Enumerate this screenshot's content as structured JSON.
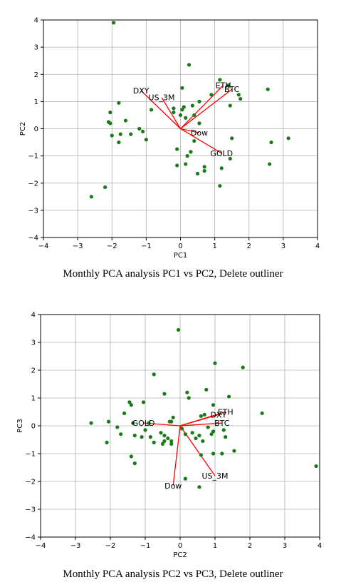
{
  "chart_data": [
    {
      "type": "scatter",
      "title": "",
      "xlabel": "PC1",
      "ylabel": "PC2",
      "xlim": [
        -4,
        4
      ],
      "ylim": [
        -4,
        4
      ],
      "xticks": [
        -4,
        -3,
        -2,
        -1,
        0,
        1,
        2,
        3,
        4
      ],
      "yticks": [
        -4,
        -3,
        -2,
        -1,
        0,
        1,
        2,
        3,
        4
      ],
      "xtick_labels": [
        "−4",
        "−3",
        "−2",
        "−1",
        "0",
        "1",
        "2",
        "3",
        "4"
      ],
      "ytick_labels": [
        "−4",
        "−3",
        "−2",
        "−1",
        "0",
        "1",
        "2",
        "3",
        "4"
      ],
      "grid": true,
      "point_color": "#1a7a1a",
      "vector_color": "#ff0000",
      "points": [
        [
          -1.95,
          3.9
        ],
        [
          -2.6,
          -2.5
        ],
        [
          -2.2,
          -2.15
        ],
        [
          -2.1,
          0.25
        ],
        [
          -2.05,
          0.6
        ],
        [
          -2.05,
          0.2
        ],
        [
          -2.0,
          -0.25
        ],
        [
          -1.8,
          0.95
        ],
        [
          -1.8,
          -0.5
        ],
        [
          -1.75,
          -0.2
        ],
        [
          -1.6,
          0.3
        ],
        [
          -1.45,
          -0.2
        ],
        [
          -1.2,
          0.0
        ],
        [
          -1.1,
          -0.1
        ],
        [
          -1.0,
          -0.4
        ],
        [
          -0.85,
          0.7
        ],
        [
          -0.2,
          0.75
        ],
        [
          -0.2,
          0.6
        ],
        [
          0.05,
          0.7
        ],
        [
          0.0,
          0.5
        ],
        [
          0.1,
          0.8
        ],
        [
          0.05,
          1.5
        ],
        [
          0.25,
          2.35
        ],
        [
          0.15,
          0.4
        ],
        [
          0.35,
          0.85
        ],
        [
          0.4,
          0.5
        ],
        [
          0.55,
          1.0
        ],
        [
          0.55,
          0.2
        ],
        [
          0.4,
          -0.45
        ],
        [
          0.3,
          -0.85
        ],
        [
          0.2,
          -1.0
        ],
        [
          -0.1,
          -0.75
        ],
        [
          -0.1,
          -1.35
        ],
        [
          0.15,
          -1.3
        ],
        [
          0.5,
          -1.65
        ],
        [
          0.7,
          -1.4
        ],
        [
          0.7,
          -1.55
        ],
        [
          0.9,
          1.25
        ],
        [
          1.15,
          1.8
        ],
        [
          1.4,
          1.6
        ],
        [
          1.45,
          0.85
        ],
        [
          1.5,
          -0.35
        ],
        [
          1.7,
          1.25
        ],
        [
          1.75,
          1.1
        ],
        [
          1.2,
          -1.45
        ],
        [
          1.15,
          -2.1
        ],
        [
          1.45,
          -1.1
        ],
        [
          2.55,
          1.45
        ],
        [
          2.6,
          -1.3
        ],
        [
          2.65,
          -0.5
        ],
        [
          3.15,
          -0.35
        ]
      ],
      "vectors": [
        {
          "name": "DXY",
          "x": -1.15,
          "y": 1.4
        },
        {
          "name": "US_3M",
          "x": -0.55,
          "y": 1.15
        },
        {
          "name": "ETH",
          "x": 1.25,
          "y": 1.6
        },
        {
          "name": "BTC",
          "x": 1.5,
          "y": 1.45
        },
        {
          "name": "Dow",
          "x": 0.55,
          "y": -0.15
        },
        {
          "name": "GOLD",
          "x": 1.2,
          "y": -0.9
        }
      ],
      "caption": "Monthly PCA analysis PC1 vs PC2, Delete outliner"
    },
    {
      "type": "scatter",
      "title": "",
      "xlabel": "PC2",
      "ylabel": "PC3",
      "xlim": [
        -4,
        4
      ],
      "ylim": [
        -4,
        4
      ],
      "xticks": [
        -4,
        -3,
        -2,
        -1,
        0,
        1,
        2,
        3,
        4
      ],
      "yticks": [
        -4,
        -3,
        -2,
        -1,
        0,
        1,
        2,
        3,
        4
      ],
      "xtick_labels": [
        "−4",
        "−3",
        "−2",
        "−1",
        "0",
        "1",
        "2",
        "3",
        "4"
      ],
      "ytick_labels": [
        "−4",
        "−3",
        "−2",
        "−1",
        "0",
        "1",
        "2",
        "3",
        "4"
      ],
      "grid": true,
      "point_color": "#1a7a1a",
      "vector_color": "#ff0000",
      "points": [
        [
          -0.05,
          3.45
        ],
        [
          1.0,
          2.25
        ],
        [
          1.8,
          2.1
        ],
        [
          -0.75,
          1.85
        ],
        [
          -0.45,
          1.15
        ],
        [
          0.2,
          1.2
        ],
        [
          0.25,
          1.0
        ],
        [
          0.75,
          1.3
        ],
        [
          1.4,
          1.05
        ],
        [
          -1.45,
          0.85
        ],
        [
          -1.4,
          0.75
        ],
        [
          -1.05,
          0.85
        ],
        [
          0.95,
          0.75
        ],
        [
          -1.6,
          0.45
        ],
        [
          -0.2,
          0.3
        ],
        [
          -0.25,
          0.15
        ],
        [
          -0.3,
          0.15
        ],
        [
          0.6,
          0.35
        ],
        [
          0.7,
          0.4
        ],
        [
          2.35,
          0.45
        ],
        [
          -2.55,
          0.1
        ],
        [
          -2.05,
          0.15
        ],
        [
          -1.35,
          0.1
        ],
        [
          -0.9,
          0.1
        ],
        [
          -1.8,
          -0.05
        ],
        [
          -1.7,
          -0.3
        ],
        [
          -1.3,
          -0.35
        ],
        [
          -1.0,
          -0.15
        ],
        [
          -0.85,
          -0.4
        ],
        [
          -0.55,
          -0.25
        ],
        [
          -0.45,
          -0.35
        ],
        [
          -0.35,
          -0.45
        ],
        [
          0.05,
          -0.1
        ],
        [
          0.15,
          -0.3
        ],
        [
          0.35,
          -0.25
        ],
        [
          0.45,
          -0.45
        ],
        [
          0.55,
          -0.35
        ],
        [
          0.8,
          -0.05
        ],
        [
          0.9,
          -0.3
        ],
        [
          0.95,
          -0.2
        ],
        [
          1.25,
          -0.15
        ],
        [
          1.3,
          -0.4
        ],
        [
          -1.1,
          -0.4
        ],
        [
          -0.75,
          -0.6
        ],
        [
          -0.5,
          -0.65
        ],
        [
          -0.45,
          -0.55
        ],
        [
          -0.25,
          -0.55
        ],
        [
          -0.25,
          -0.65
        ],
        [
          -2.1,
          -0.6
        ],
        [
          0.65,
          -0.55
        ],
        [
          -1.4,
          -1.1
        ],
        [
          -1.3,
          -1.35
        ],
        [
          0.6,
          -1.05
        ],
        [
          0.95,
          -1.0
        ],
        [
          1.2,
          -1.0
        ],
        [
          1.55,
          -0.9
        ],
        [
          0.15,
          -1.9
        ],
        [
          0.55,
          -2.2
        ],
        [
          3.9,
          -1.45
        ]
      ],
      "vectors": [
        {
          "name": "GOLD",
          "x": -1.05,
          "y": 0.1
        },
        {
          "name": "Dow",
          "x": -0.2,
          "y": -2.15
        },
        {
          "name": "US_3M",
          "x": 1.0,
          "y": -1.8
        },
        {
          "name": "ETH",
          "x": 1.3,
          "y": 0.5
        },
        {
          "name": "DXY",
          "x": 1.1,
          "y": 0.4
        },
        {
          "name": "BTC",
          "x": 1.2,
          "y": 0.1
        }
      ],
      "caption": "Monthly PCA analysis PC2 vs PC3, Delete outliner"
    }
  ]
}
